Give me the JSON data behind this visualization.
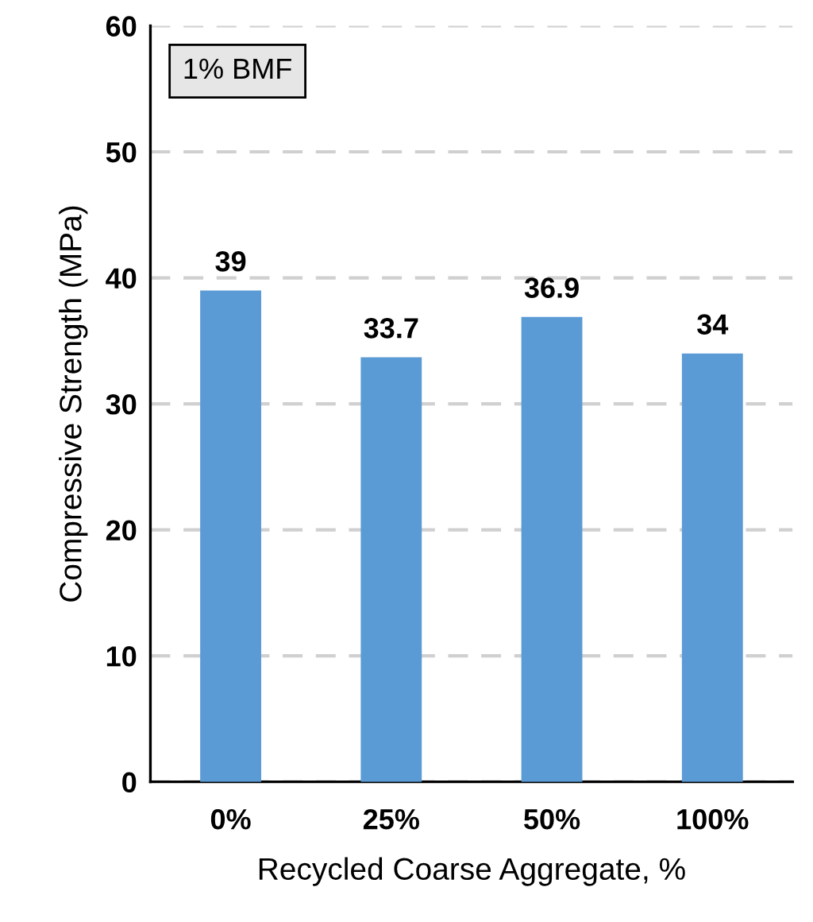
{
  "chart_data": {
    "type": "bar",
    "xlabel": "Recycled Coarse Aggregate, %",
    "ylabel": "Compressive Strength (MPa)",
    "categories": [
      "0%",
      "25%",
      "50%",
      "100%"
    ],
    "values": [
      39,
      33.7,
      36.9,
      34
    ],
    "color": "#5b9bd5",
    "ylim": [
      0,
      60
    ],
    "yticks": [
      0,
      10,
      20,
      30,
      40,
      50,
      60
    ],
    "grid": "y",
    "data_labels": true,
    "annotations": [
      "1% BMF"
    ]
  }
}
